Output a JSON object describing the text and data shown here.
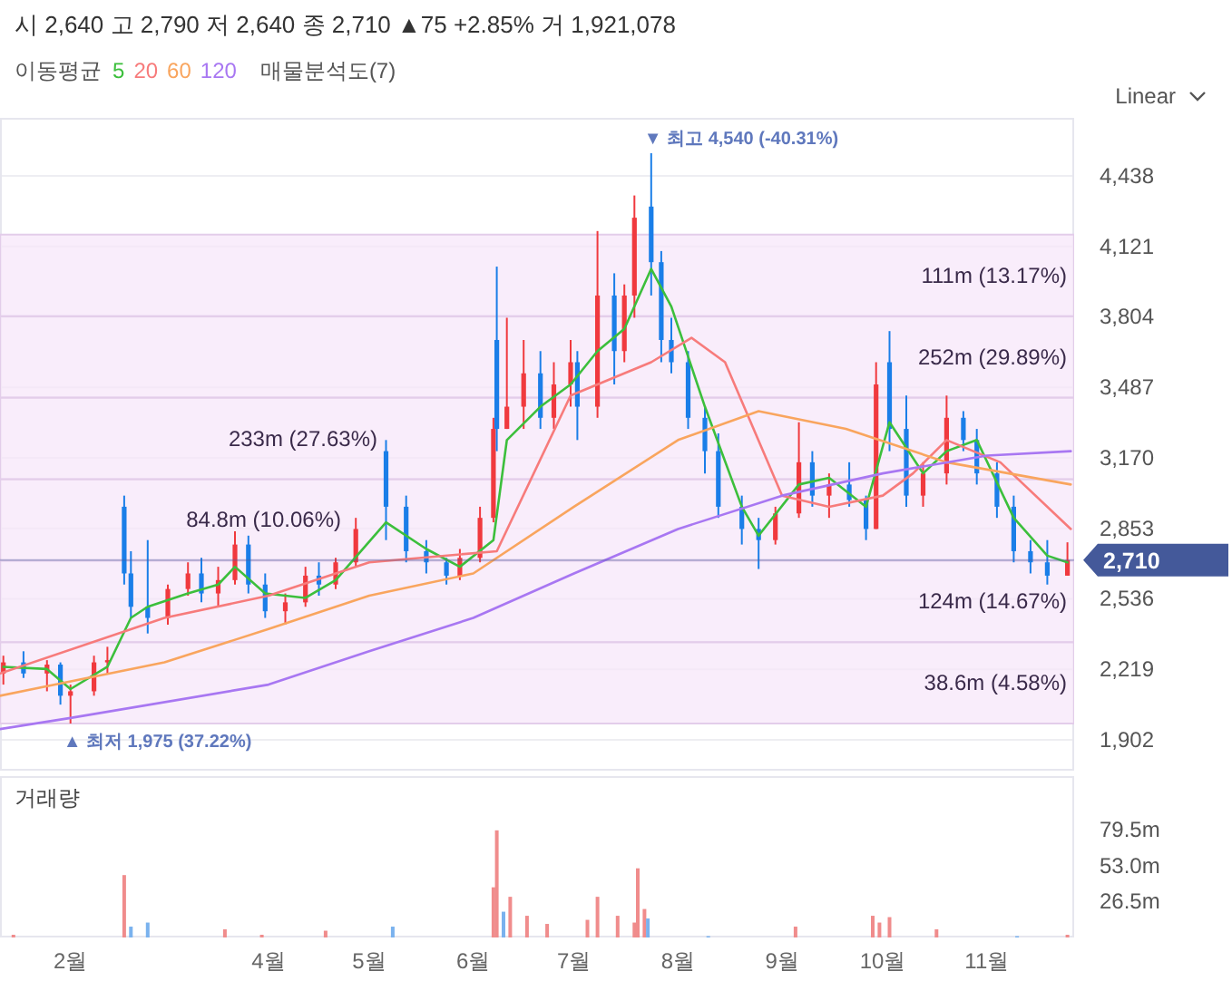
{
  "chart_data": [
    {
      "type": "candlestick",
      "title": "시 2,640  고 2,790  저 2,640  종 2,710  ▲75 +2.85%  거 1,921,078",
      "subtitle": "매물분석도(7)",
      "legend_title": "이동평균",
      "legend": "top",
      "grid": "y",
      "tick_labels": "y",
      "xlim": [
        "--01-11",
        "--11-27"
      ],
      "ylim": [
        1763,
        4699
      ],
      "yticks": [
        {
          "value": 1902,
          "label": "1,902"
        },
        {
          "value": 2219,
          "label": "2,219"
        },
        {
          "value": 2536,
          "label": "2,536"
        },
        {
          "value": 2853,
          "label": "2,853"
        },
        {
          "value": 3170,
          "label": "3,170"
        },
        {
          "value": 3487,
          "label": "3,487"
        },
        {
          "value": 3804,
          "label": "3,804"
        },
        {
          "value": 4121,
          "label": "4,121"
        },
        {
          "value": 4438,
          "label": "4,438"
        }
      ],
      "bands": [
        {
          "axis": "y",
          "from": 1975,
          "to": 2341,
          "label": "38.6m (4.58%)",
          "color": "#f6e6fa"
        },
        {
          "axis": "y",
          "from": 2341,
          "to": 2708,
          "label": "124m (14.67%)",
          "color": "#f6e6fa"
        },
        {
          "axis": "y",
          "from": 2708,
          "to": 3074,
          "label": "84.8m (10.06%)",
          "color": "#f6e6fa"
        },
        {
          "axis": "y",
          "from": 3074,
          "to": 3441,
          "label": "233m (27.63%)",
          "color": "#f6e6fa"
        },
        {
          "axis": "y",
          "from": 3441,
          "to": 3807,
          "label": "252m (29.89%)",
          "color": "#f6e6fa"
        },
        {
          "axis": "y",
          "from": 3807,
          "to": 4174,
          "label": "111m (13.17%)",
          "color": "#f6e6fa"
        }
      ],
      "ref_lines": [
        {
          "axis": "y",
          "value": 2710,
          "label": "2,710",
          "color": "#44599a"
        }
      ],
      "annotations": [
        "Linear",
        {
          "text": "▼ 최고 4,540 (-40.31%)",
          "x": "--07-24",
          "y": 4540
        },
        {
          "text": "▲ 최저 1,975 (37.22%)",
          "x": "--02-01",
          "y": 1975
        }
      ],
      "series": [
        {
          "type": "candlestick",
          "x": [
            "--01-12",
            "--01-18",
            "--01-25",
            "--01-29",
            "--02-01",
            "--02-08",
            "--02-12",
            "--02-17",
            "--02-19",
            "--02-24",
            "--03-02",
            "--03-08",
            "--03-12",
            "--03-17",
            "--03-22",
            "--03-26",
            "--03-31",
            "--04-06",
            "--04-12",
            "--04-16",
            "--04-21",
            "--04-27",
            "--05-06",
            "--05-12",
            "--05-18",
            "--05-24",
            "--05-28",
            "--06-03",
            "--06-07",
            "--06-08",
            "--06-11",
            "--06-16",
            "--06-21",
            "--06-25",
            "--06-30",
            "--07-02",
            "--07-08",
            "--07-13",
            "--07-16",
            "--07-19",
            "--07-24",
            "--07-27",
            "--07-30",
            "--08-04",
            "--08-09",
            "--08-13",
            "--08-20",
            "--08-25",
            "--08-30",
            "--09-06",
            "--09-10",
            "--09-15",
            "--09-21",
            "--09-26",
            "--09-29",
            "--10-03",
            "--10-08",
            "--10-13",
            "--10-20",
            "--10-25",
            "--10-29",
            "--11-04",
            "--11-09",
            "--11-14",
            "--11-19",
            "--11-25"
          ],
          "ohlc": [
            [
              2200,
              2280,
              2150,
              2250
            ],
            [
              2250,
              2300,
              2180,
              2200
            ],
            [
              2200,
              2260,
              2120,
              2240
            ],
            [
              2240,
              2250,
              2060,
              2100
            ],
            [
              2100,
              2150,
              1975,
              2120
            ],
            [
              2120,
              2280,
              2100,
              2250
            ],
            [
              2250,
              2320,
              2200,
              2260
            ],
            [
              2950,
              3000,
              2600,
              2650
            ],
            [
              2650,
              2750,
              2450,
              2500
            ],
            [
              2500,
              2800,
              2380,
              2450
            ],
            [
              2450,
              2600,
              2420,
              2580
            ],
            [
              2580,
              2700,
              2550,
              2650
            ],
            [
              2650,
              2720,
              2520,
              2560
            ],
            [
              2560,
              2680,
              2500,
              2620
            ],
            [
              2620,
              2840,
              2600,
              2780
            ],
            [
              2780,
              2820,
              2560,
              2600
            ],
            [
              2600,
              2650,
              2450,
              2480
            ],
            [
              2480,
              2560,
              2420,
              2520
            ],
            [
              2520,
              2680,
              2500,
              2640
            ],
            [
              2640,
              2700,
              2550,
              2600
            ],
            [
              2600,
              2720,
              2580,
              2700
            ],
            [
              2700,
              2900,
              2680,
              2850
            ],
            [
              3200,
              3250,
              2800,
              2950
            ],
            [
              2950,
              3000,
              2700,
              2750
            ],
            [
              2750,
              2800,
              2650,
              2700
            ],
            [
              2700,
              2720,
              2600,
              2640
            ],
            [
              2640,
              2760,
              2620,
              2720
            ],
            [
              2720,
              2950,
              2700,
              2900
            ],
            [
              2900,
              3350,
              2880,
              3300
            ],
            [
              3700,
              4030,
              3200,
              3300
            ],
            [
              3300,
              3800,
              3300,
              3400
            ],
            [
              3400,
              3700,
              3300,
              3550
            ],
            [
              3550,
              3650,
              3300,
              3350
            ],
            [
              3350,
              3600,
              3300,
              3500
            ],
            [
              3500,
              3700,
              3400,
              3600
            ],
            [
              3600,
              3650,
              3250,
              3400
            ],
            [
              3400,
              4190,
              3350,
              3900
            ],
            [
              3900,
              4000,
              3500,
              3650
            ],
            [
              3650,
              3950,
              3600,
              3900
            ],
            [
              3900,
              4350,
              3800,
              4250
            ],
            [
              4300,
              4540,
              3900,
              4050
            ],
            [
              4050,
              4100,
              3600,
              3700
            ],
            [
              3700,
              3800,
              3550,
              3600
            ],
            [
              3600,
              3650,
              3300,
              3350
            ],
            [
              3350,
              3400,
              3100,
              3200
            ],
            [
              3200,
              3280,
              2900,
              2950
            ],
            [
              2950,
              3000,
              2780,
              2850
            ],
            [
              2850,
              2900,
              2670,
              2800
            ],
            [
              2800,
              2950,
              2780,
              2920
            ],
            [
              2920,
              3330,
              2900,
              3150
            ],
            [
              3150,
              3200,
              2950,
              3000
            ],
            [
              3000,
              3100,
              2900,
              3050
            ],
            [
              3050,
              3150,
              2950,
              2980
            ],
            [
              2980,
              3000,
              2800,
              2850
            ],
            [
              2850,
              3600,
              2850,
              3500
            ],
            [
              3600,
              3740,
              3200,
              3300
            ],
            [
              3300,
              3450,
              2950,
              3000
            ],
            [
              3000,
              3150,
              2950,
              3100
            ],
            [
              3100,
              3450,
              3050,
              3350
            ],
            [
              3350,
              3380,
              3200,
              3250
            ],
            [
              3250,
              3300,
              3050,
              3100
            ],
            [
              3100,
              3150,
              2900,
              2950
            ],
            [
              2950,
              3000,
              2700,
              2750
            ],
            [
              2750,
              2800,
              2650,
              2700
            ],
            [
              2700,
              2800,
              2600,
              2640
            ],
            [
              2640,
              2790,
              2640,
              2710
            ]
          ],
          "colors": [
            "#f0393e",
            "#1a7ee8",
            "#f0393e",
            "#1a7ee8",
            "#f0393e",
            "#f0393e",
            "#f0393e",
            "#1a7ee8",
            "#1a7ee8",
            "#1a7ee8",
            "#f0393e",
            "#f0393e",
            "#1a7ee8",
            "#f0393e",
            "#f0393e",
            "#1a7ee8",
            "#1a7ee8",
            "#f0393e",
            "#f0393e",
            "#1a7ee8",
            "#f0393e",
            "#f0393e",
            "#1a7ee8",
            "#1a7ee8",
            "#1a7ee8",
            "#1a7ee8",
            "#f0393e",
            "#f0393e",
            "#f0393e",
            "#1a7ee8",
            "#f0393e",
            "#f0393e",
            "#1a7ee8",
            "#f0393e",
            "#f0393e",
            "#1a7ee8",
            "#f0393e",
            "#1a7ee8",
            "#f0393e",
            "#f0393e",
            "#1a7ee8",
            "#1a7ee8",
            "#1a7ee8",
            "#1a7ee8",
            "#1a7ee8",
            "#1a7ee8",
            "#1a7ee8",
            "#1a7ee8",
            "#f0393e",
            "#f0393e",
            "#1a7ee8",
            "#f0393e",
            "#1a7ee8",
            "#1a7ee8",
            "#f0393e",
            "#1a7ee8",
            "#1a7ee8",
            "#f0393e",
            "#f0393e",
            "#1a7ee8",
            "#1a7ee8",
            "#1a7ee8",
            "#1a7ee8",
            "#1a7ee8",
            "#1a7ee8",
            "#f0393e"
          ]
        },
        {
          "type": "line",
          "name": "5",
          "color": "#3cbf3c",
          "x": [
            "--01-12",
            "--01-25",
            "--02-01",
            "--02-12",
            "--02-19",
            "--02-24",
            "--03-08",
            "--03-17",
            "--03-22",
            "--03-31",
            "--04-12",
            "--04-21",
            "--05-06",
            "--05-18",
            "--05-28",
            "--06-07",
            "--06-11",
            "--06-21",
            "--06-30",
            "--07-08",
            "--07-16",
            "--07-24",
            "--07-30",
            "--08-09",
            "--08-20",
            "--08-25",
            "--09-06",
            "--09-15",
            "--09-26",
            "--10-03",
            "--10-13",
            "--10-20",
            "--10-29",
            "--11-09",
            "--11-19",
            "--11-25"
          ],
          "values": [
            2230,
            2220,
            2130,
            2230,
            2450,
            2500,
            2560,
            2600,
            2680,
            2560,
            2540,
            2620,
            2880,
            2760,
            2680,
            2800,
            3250,
            3400,
            3500,
            3650,
            3750,
            4020,
            3850,
            3400,
            2950,
            2820,
            3050,
            3080,
            2950,
            3330,
            3100,
            3200,
            3250,
            2900,
            2730,
            2700
          ]
        },
        {
          "type": "line",
          "name": "20",
          "color": "#f77b7b",
          "x": [
            "--01-11",
            "--03-01",
            "--04-01",
            "--05-01",
            "--06-08",
            "--06-30",
            "--07-24",
            "--08-05",
            "--08-15",
            "--09-01",
            "--09-15",
            "--10-01",
            "--10-10",
            "--10-20",
            "--11-05",
            "--11-26"
          ],
          "values": [
            2200,
            2450,
            2550,
            2700,
            2750,
            3450,
            3600,
            3710,
            3600,
            3000,
            2950,
            3000,
            3100,
            3250,
            3150,
            2850
          ]
        },
        {
          "type": "line",
          "name": "60",
          "color": "#f9a55e",
          "x": [
            "--01-11",
            "--03-01",
            "--04-01",
            "--05-01",
            "--06-01",
            "--07-01",
            "--08-01",
            "--08-25",
            "--09-20",
            "--10-20",
            "--11-26"
          ],
          "values": [
            2100,
            2250,
            2400,
            2550,
            2650,
            2950,
            3250,
            3380,
            3300,
            3150,
            3050
          ]
        },
        {
          "type": "line",
          "name": "120",
          "color": "#a877f2",
          "x": [
            "--01-11",
            "--02-01",
            "--04-01",
            "--05-01",
            "--06-01",
            "--07-01",
            "--08-01",
            "--09-01",
            "--10-01",
            "--11-01",
            "--11-26"
          ],
          "values": [
            1950,
            2000,
            2150,
            2300,
            2450,
            2650,
            2850,
            3000,
            3100,
            3180,
            3200
          ]
        }
      ]
    },
    {
      "type": "bar",
      "title": "거래량",
      "xlim": [
        "--01-11",
        "--11-27"
      ],
      "ylim": [
        0,
        119
      ],
      "xticks": [
        {
          "value": "--02-01",
          "label": "2월"
        },
        {
          "value": "--04-01",
          "label": "4월"
        },
        {
          "value": "--05-01",
          "label": "5월"
        },
        {
          "value": "--06-01",
          "label": "6월"
        },
        {
          "value": "--07-01",
          "label": "7월"
        },
        {
          "value": "--08-01",
          "label": "8월"
        },
        {
          "value": "--09-01",
          "label": "9월"
        },
        {
          "value": "--10-01",
          "label": "10월"
        },
        {
          "value": "--11-01",
          "label": "11월"
        }
      ],
      "yticks": [
        {
          "value": 26.5,
          "label": "26.5m"
        },
        {
          "value": 53,
          "label": "53.0m"
        },
        {
          "value": 79.5,
          "label": "79.5m"
        }
      ],
      "x": [
        "--01-15",
        "--02-17",
        "--02-19",
        "--02-24",
        "--03-19",
        "--03-30",
        "--04-18",
        "--05-08",
        "--06-07",
        "--06-08",
        "--06-10",
        "--06-12",
        "--06-17",
        "--06-23",
        "--07-05",
        "--07-08",
        "--07-14",
        "--07-19",
        "--07-20",
        "--07-22",
        "--07-23",
        "--08-10",
        "--09-05",
        "--09-28",
        "--09-30",
        "--10-03",
        "--10-17",
        "--11-10",
        "--11-25"
      ],
      "values": [
        2,
        46,
        8,
        11,
        6,
        2,
        5,
        8,
        37,
        79,
        19,
        30,
        16,
        10,
        13,
        30,
        16,
        11,
        51,
        21,
        14,
        1,
        8,
        16,
        11,
        15,
        6,
        1,
        2
      ],
      "colors": [
        "#f08c8c",
        "#f08c8c",
        "#7ab2ee",
        "#7ab2ee",
        "#f08c8c",
        "#f08c8c",
        "#f08c8c",
        "#7ab2ee",
        "#f08c8c",
        "#f08c8c",
        "#7ab2ee",
        "#f08c8c",
        "#f08c8c",
        "#f08c8c",
        "#f08c8c",
        "#f08c8c",
        "#f08c8c",
        "#f08c8c",
        "#f08c8c",
        "#f08c8c",
        "#7ab2ee",
        "#7ab2ee",
        "#f08c8c",
        "#f08c8c",
        "#f08c8c",
        "#f08c8c",
        "#f08c8c",
        "#7ab2ee",
        "#f08c8c"
      ]
    }
  ]
}
